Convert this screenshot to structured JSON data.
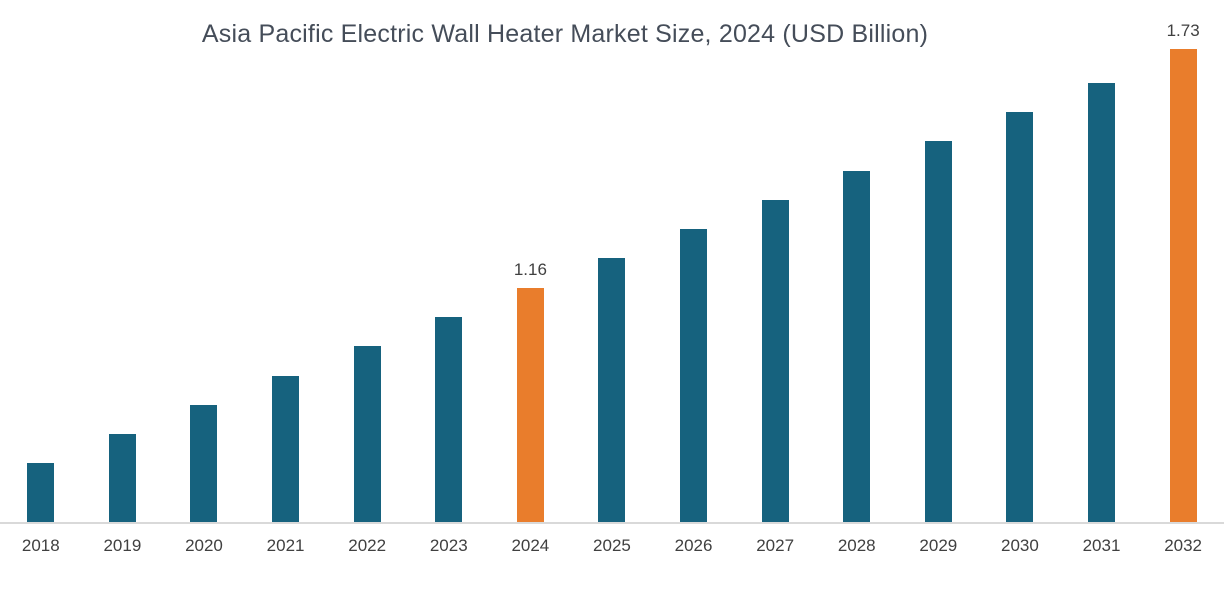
{
  "chart_data": {
    "type": "bar",
    "title": "Asia Pacific Electric Wall Heater Market Size, 2024 (USD Billion)",
    "categories": [
      "2018",
      "2019",
      "2020",
      "2021",
      "2022",
      "2023",
      "2024",
      "2025",
      "2026",
      "2027",
      "2028",
      "2029",
      "2030",
      "2031",
      "2032"
    ],
    "values": [
      0.74,
      0.81,
      0.88,
      0.95,
      1.02,
      1.09,
      1.16,
      1.23,
      1.3,
      1.37,
      1.44,
      1.51,
      1.58,
      1.65,
      1.73
    ],
    "data_labels": {
      "2024": "1.16",
      "2032": "1.73"
    },
    "highlighted_categories": [
      "2024",
      "2032"
    ],
    "xlabel": "",
    "ylabel": "",
    "ylim": [
      0.6,
      1.8
    ],
    "grid": false,
    "legend": false,
    "colors": {
      "bar": "#16627E",
      "highlight": "#E97D2C",
      "axis_line": "#D9D9D9",
      "text": "#404040",
      "title_text": "#454D59"
    }
  }
}
